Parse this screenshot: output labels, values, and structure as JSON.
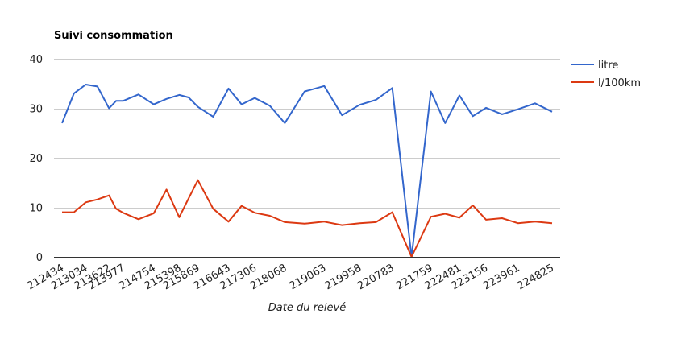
{
  "chart_data": {
    "type": "line",
    "title": "Suivi consommation",
    "xlabel": "Date du relevé",
    "ylabel": "",
    "ylim": [
      0,
      40
    ],
    "yticks": [
      0,
      10,
      20,
      30,
      40
    ],
    "grid": true,
    "legend_position": "right",
    "x": [
      212434,
      212734,
      213034,
      213328,
      213622,
      213800,
      213977,
      214366,
      214754,
      215076,
      215398,
      215634,
      215869,
      216256,
      216643,
      216975,
      217306,
      217687,
      218068,
      218566,
      219063,
      219511,
      219958,
      220371,
      220783,
      221271,
      221759,
      222120,
      222481,
      222819,
      223156,
      223559,
      223961,
      224393,
      224825
    ],
    "tick_labels": [
      "212434",
      "213034",
      "213622",
      "213977",
      "214754",
      "215398",
      "215869",
      "216643",
      "217306",
      "218068",
      "219063",
      "219958",
      "220783",
      "221759",
      "222481",
      "223156",
      "223961",
      "224825"
    ],
    "series": [
      {
        "name": "litre",
        "color": "#3366cc",
        "values": [
          27.0,
          33.0,
          34.8,
          34.4,
          30.0,
          31.5,
          31.5,
          32.8,
          30.8,
          31.9,
          32.7,
          32.2,
          30.3,
          28.3,
          34.0,
          30.8,
          32.1,
          30.5,
          27.0,
          33.4,
          34.5,
          28.6,
          30.7,
          31.7,
          34.1,
          0.0,
          33.4,
          27.0,
          32.6,
          28.4,
          30.1,
          28.8,
          29.8,
          31.0,
          29.3
        ]
      },
      {
        "name": "l/100km",
        "color": "#dc3912",
        "values": [
          9.0,
          9.0,
          11.0,
          11.6,
          12.4,
          9.7,
          8.9,
          7.6,
          8.8,
          13.6,
          8.0,
          11.8,
          15.5,
          9.7,
          7.1,
          10.3,
          8.9,
          8.3,
          7.0,
          6.7,
          7.1,
          6.4,
          6.8,
          7.0,
          9.0,
          0.0,
          8.1,
          8.7,
          7.9,
          10.4,
          7.5,
          7.8,
          6.8,
          7.1,
          6.8
        ]
      }
    ]
  }
}
